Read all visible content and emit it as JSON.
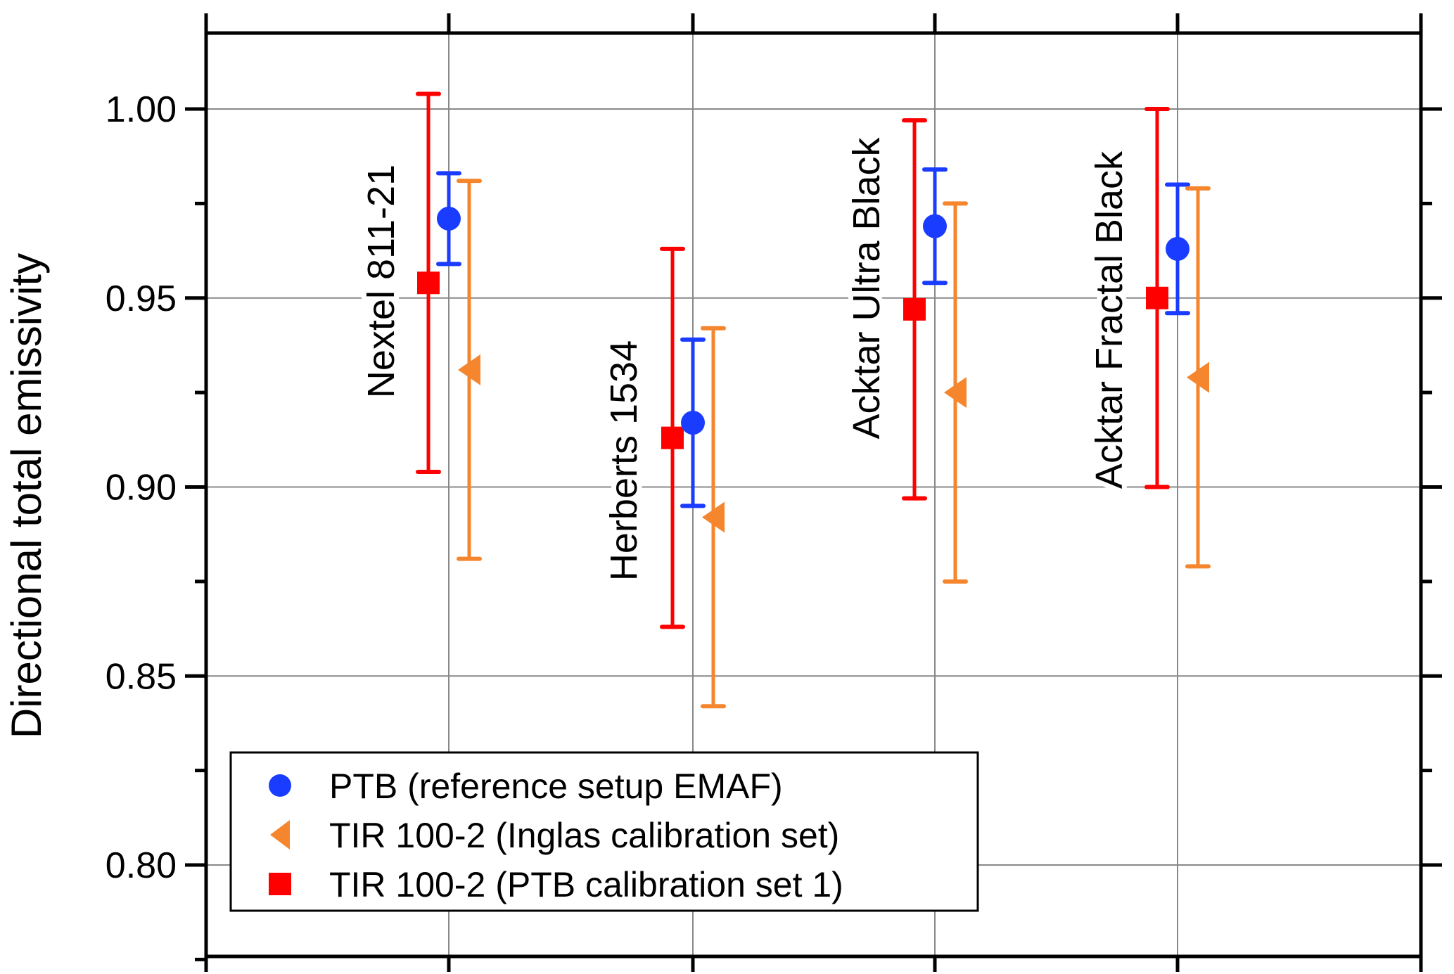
{
  "chart_data": {
    "type": "scatter",
    "title": "",
    "xlabel": "",
    "ylabel": "Directional total emissivity",
    "ylim": [
      0.78,
      1.025
    ],
    "yticks": [
      "0.80",
      "0.85",
      "0.90",
      "0.95",
      "1.00"
    ],
    "grid": true,
    "legend_position": "bottom-left",
    "categories": [
      "Nextel 811-21",
      "Herberts 1534",
      "Acktar Ultra Black",
      "Acktar Fractal Black"
    ],
    "series": [
      {
        "name": "TIR 100-2 (PTB calibration set 1)",
        "marker": "square",
        "color": "#ff0000",
        "values": [
          0.954,
          0.913,
          0.947,
          0.95
        ],
        "err_low": [
          0.904,
          0.863,
          0.897,
          0.9
        ],
        "err_high": [
          1.004,
          0.963,
          0.997,
          1.0
        ]
      },
      {
        "name": "PTB (reference setup EMAF)",
        "marker": "circle",
        "color": "#1a3cff",
        "values": [
          0.971,
          0.917,
          0.969,
          0.963
        ],
        "err_low": [
          0.959,
          0.895,
          0.954,
          0.946
        ],
        "err_high": [
          0.983,
          0.939,
          0.984,
          0.98
        ]
      },
      {
        "name": "TIR 100-2 (Inglas calibration set)",
        "marker": "triangle-left",
        "color": "#f5862e",
        "values": [
          0.931,
          0.892,
          0.925,
          0.929
        ],
        "err_low": [
          0.881,
          0.842,
          0.875,
          0.879
        ],
        "err_high": [
          0.981,
          0.942,
          0.975,
          0.979
        ]
      }
    ],
    "legend": [
      {
        "label": "PTB (reference setup EMAF)",
        "marker": "circle",
        "color": "#1a3cff"
      },
      {
        "label": "TIR 100-2 (Inglas calibration set)",
        "marker": "triangle-left",
        "color": "#f5862e"
      },
      {
        "label": "TIR 100-2 (PTB calibration set 1)",
        "marker": "square",
        "color": "#ff0000"
      }
    ]
  }
}
